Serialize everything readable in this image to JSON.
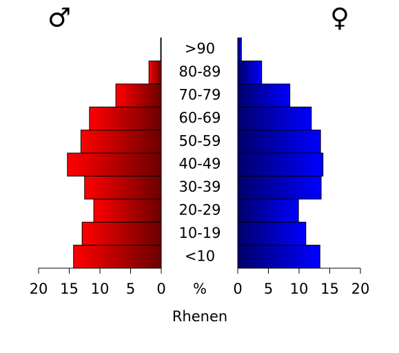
{
  "chart_data": {
    "type": "pyramid",
    "title": "Rhenen",
    "x_label": "%",
    "categories": [
      "<10",
      "10-19",
      "20-29",
      "30-39",
      "40-49",
      "50-59",
      "60-69",
      "70-79",
      "80-89",
      ">90"
    ],
    "series": [
      {
        "name": "♂",
        "color": "#ff0000",
        "values": [
          14.3,
          12.9,
          11.0,
          12.5,
          15.3,
          13.1,
          11.7,
          7.4,
          2.0,
          0.1
        ]
      },
      {
        "name": "♀",
        "color": "#0000ff",
        "values": [
          13.4,
          11.1,
          9.9,
          13.6,
          13.9,
          13.5,
          12.0,
          8.5,
          3.9,
          0.6
        ]
      }
    ],
    "xlim": [
      0,
      20
    ],
    "xticks": [
      0,
      5,
      10,
      15,
      20
    ]
  }
}
